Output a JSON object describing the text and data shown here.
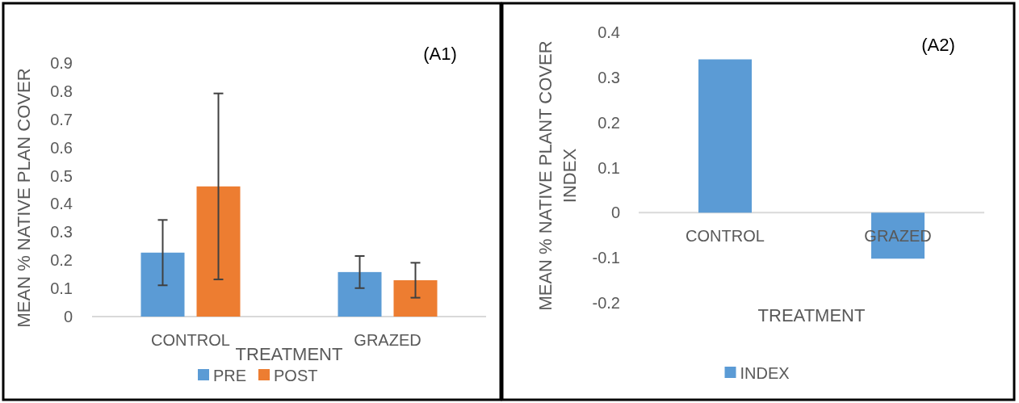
{
  "chart_data": [
    {
      "type": "bar",
      "title": "(A1)",
      "xlabel": "TREATMENT",
      "ylabel": "MEAN % NATIVE PLAN COVER",
      "categories": [
        "CONTROL",
        "GRAZED"
      ],
      "series": [
        {
          "name": "PRE",
          "color": "#5b9bd5",
          "values": [
            0.227,
            0.158
          ],
          "errors": [
            0.116,
            0.057
          ]
        },
        {
          "name": "POST",
          "color": "#ed7d31",
          "values": [
            0.462,
            0.129
          ],
          "errors": [
            0.33,
            0.062
          ]
        }
      ],
      "ylim": [
        0,
        0.9
      ],
      "yticks": [
        {
          "value": 0,
          "label": "0"
        },
        0.1,
        0.2,
        0.3,
        0.4,
        0.5,
        0.6,
        0.7,
        0.8,
        0.9
      ],
      "legend": "bottom"
    },
    {
      "type": "bar",
      "title": "(A2)",
      "xlabel": "TREATMENT",
      "ylabel": "MEAN % NATIVE PLANT COVER INDEX",
      "categories": [
        "CONTROL",
        "GRAZED"
      ],
      "series": [
        {
          "name": "INDEX",
          "color": "#5b9bd5",
          "values": [
            0.34,
            -0.102
          ]
        }
      ],
      "ylim": [
        -0.2,
        0.4
      ],
      "yticks": [
        -0.2,
        -0.1,
        {
          "value": 0,
          "label": "0"
        },
        0.1,
        0.2,
        0.3,
        0.4
      ],
      "legend": "bottom"
    }
  ]
}
